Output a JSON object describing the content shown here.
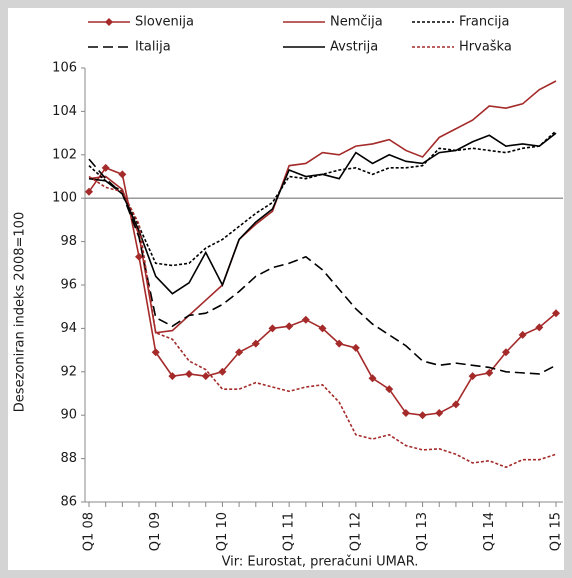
{
  "chart_data": {
    "type": "line",
    "y_label": "Desezoniran indeks 2008=100",
    "source": "Vir: Eurostat, preračuni UMAR.",
    "categories": [
      "Q1 08",
      null,
      null,
      null,
      "Q1 09",
      null,
      null,
      null,
      "Q1 10",
      null,
      null,
      null,
      "Q1 11",
      null,
      null,
      null,
      "Q1 12",
      null,
      null,
      null,
      "Q1 13",
      null,
      null,
      null,
      "Q1 14",
      null,
      null,
      null,
      "Q1 15"
    ],
    "ylim": [
      86,
      106
    ],
    "yticks": [
      86,
      88,
      90,
      92,
      94,
      96,
      98,
      100,
      102,
      104,
      106
    ],
    "reference_line": 100,
    "series": [
      {
        "name": "Slovenija",
        "color": "#a52a2a",
        "dash": "none",
        "marker": "diamond",
        "values": [
          100.3,
          101.4,
          101.1,
          97.3,
          92.9,
          91.8,
          91.9,
          91.8,
          92.0,
          92.9,
          93.3,
          94.0,
          94.1,
          94.4,
          94.0,
          93.3,
          93.1,
          91.7,
          91.2,
          90.1,
          90.0,
          90.1,
          90.5,
          91.8,
          91.95,
          92.9,
          93.7,
          94.05,
          94.7
        ]
      },
      {
        "name": "Nemčija",
        "color": "#a52a2a",
        "dash": "none",
        "values": [
          100.9,
          101.0,
          100.4,
          98.3,
          93.8,
          93.9,
          94.6,
          95.3,
          96.0,
          98.1,
          98.8,
          99.4,
          101.5,
          101.6,
          102.1,
          102.0,
          102.4,
          102.5,
          102.7,
          102.2,
          101.9,
          102.8,
          103.2,
          103.6,
          104.25,
          104.15,
          104.35,
          105.0,
          105.4
        ]
      },
      {
        "name": "Francija",
        "color": "#000000",
        "dash": "3,2",
        "values": [
          101.5,
          100.8,
          100.3,
          98.7,
          97.0,
          96.9,
          97.0,
          97.7,
          98.1,
          98.7,
          99.3,
          99.8,
          101.0,
          100.9,
          101.1,
          101.3,
          101.4,
          101.1,
          101.4,
          101.4,
          101.5,
          102.3,
          102.2,
          102.3,
          102.2,
          102.1,
          102.3,
          102.4,
          103.1
        ]
      },
      {
        "name": "Italija",
        "color": "#000000",
        "dash": "10,5",
        "values": [
          101.8,
          100.9,
          100.2,
          98.2,
          94.5,
          94.1,
          94.6,
          94.7,
          95.1,
          95.7,
          96.4,
          96.8,
          97.0,
          97.3,
          96.7,
          95.8,
          94.9,
          94.2,
          93.7,
          93.2,
          92.5,
          92.3,
          92.4,
          92.3,
          92.2,
          92.0,
          91.95,
          91.9,
          92.3
        ]
      },
      {
        "name": "Avstrija",
        "color": "#000000",
        "dash": "none",
        "values": [
          100.9,
          100.8,
          100.2,
          98.5,
          96.4,
          95.6,
          96.1,
          97.5,
          96.0,
          98.1,
          98.9,
          99.5,
          101.3,
          101.0,
          101.1,
          100.9,
          102.1,
          101.6,
          102.0,
          101.7,
          101.6,
          102.1,
          102.2,
          102.6,
          102.9,
          102.4,
          102.5,
          102.4,
          103.0
        ]
      },
      {
        "name": "Hrvaška",
        "color": "#a52a2a",
        "dash": "3,2",
        "values": [
          101.0,
          100.5,
          100.3,
          98.8,
          93.8,
          93.5,
          92.5,
          92.1,
          91.2,
          91.2,
          91.5,
          91.3,
          91.1,
          91.3,
          91.4,
          90.6,
          89.1,
          88.9,
          89.1,
          88.6,
          88.4,
          88.45,
          88.2,
          87.8,
          87.9,
          87.6,
          87.95,
          87.95,
          88.2
        ]
      }
    ]
  }
}
